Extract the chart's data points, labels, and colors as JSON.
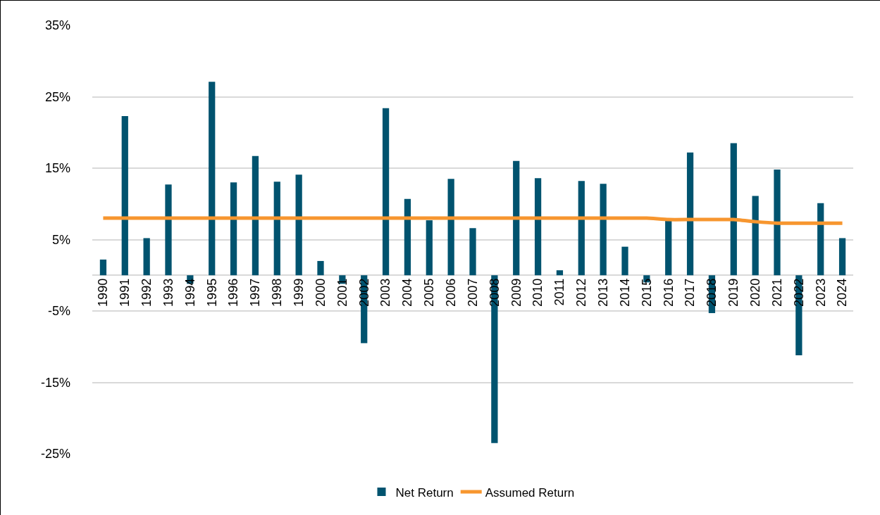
{
  "chart_data": {
    "type": "bar",
    "categories": [
      "1990",
      "1991",
      "1992",
      "1993",
      "1994",
      "1995",
      "1996",
      "1997",
      "1998",
      "1999",
      "2000",
      "2001",
      "2002",
      "2003",
      "2004",
      "2005",
      "2006",
      "2007",
      "2008",
      "2009",
      "2010",
      "2011",
      "2012",
      "2013",
      "2014",
      "2015",
      "2016",
      "2017",
      "2018",
      "2019",
      "2020",
      "2021",
      "2022",
      "2023",
      "2024"
    ],
    "series": [
      {
        "name": "Net Return",
        "color": "#00536f",
        "values": [
          2.2,
          22.3,
          5.2,
          12.7,
          -1.2,
          27.1,
          13.0,
          16.7,
          13.1,
          14.1,
          2.0,
          -1.2,
          -9.5,
          23.4,
          10.7,
          7.7,
          13.5,
          6.6,
          -23.5,
          16.0,
          13.6,
          0.7,
          13.2,
          12.8,
          4.0,
          -1.0,
          7.7,
          17.2,
          -5.3,
          18.5,
          11.1,
          14.8,
          -11.2,
          10.1,
          5.2
        ]
      },
      {
        "name": "Assumed Return",
        "type": "line",
        "color": "#f7962f",
        "values": [
          8,
          8,
          8,
          8,
          8,
          8,
          8,
          8,
          8,
          8,
          8,
          8,
          8,
          8,
          8,
          8,
          8,
          8,
          8,
          8,
          8,
          8,
          8,
          8,
          8,
          8,
          7.8,
          7.8,
          7.8,
          7.8,
          7.5,
          7.3,
          7.3,
          7.3,
          7.3
        ]
      }
    ],
    "ylim": [
      -25,
      35
    ],
    "yticks": [
      {
        "value": 35,
        "label": "35%"
      },
      {
        "value": 25,
        "label": "25%"
      },
      {
        "value": 15,
        "label": "15%"
      },
      {
        "value": 5,
        "label": "5%"
      },
      {
        "value": -5,
        "label": "-5%"
      },
      {
        "value": -15,
        "label": "-15%"
      },
      {
        "value": -25,
        "label": "-25%"
      }
    ],
    "grid": "y",
    "legend": "bottom",
    "marker": "none",
    "line_style": "solid"
  }
}
